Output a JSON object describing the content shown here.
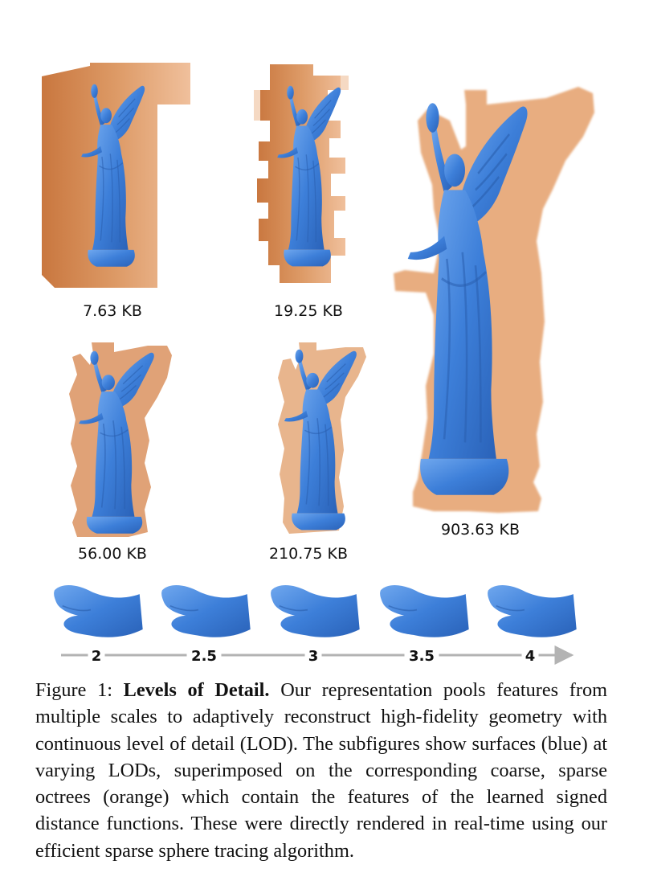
{
  "figure": {
    "panels": [
      {
        "label": "7.63 KB"
      },
      {
        "label": "19.25 KB"
      },
      {
        "label": "903.63 KB"
      },
      {
        "label": "56.00 KB"
      },
      {
        "label": "210.75 KB"
      }
    ],
    "lod_axis": {
      "ticks": [
        "2",
        "2.5",
        "3",
        "3.5",
        "4"
      ]
    },
    "colors": {
      "surface": "#3d7fd9",
      "octree": "#d99560",
      "axis": "#b3b3b3"
    }
  },
  "caption": {
    "prefix": "Figure 1:",
    "title": "Levels of Detail.",
    "body": "Our representation pools features from multiple scales to adaptively reconstruct high-fidelity geometry with continuous level of detail (LOD). The subfigures show sur­faces (blue) at varying LODs, superimposed on the corresponding coarse, sparse octrees (orange) which contain the features of the learned signed distance functions. These were directly rendered in real-time using our efficient sparse sphere tracing algorithm."
  }
}
